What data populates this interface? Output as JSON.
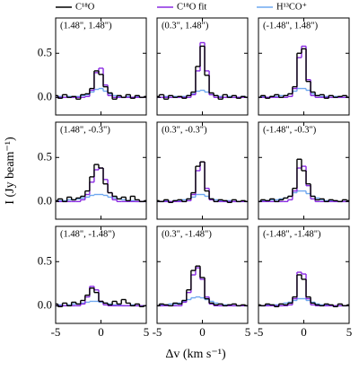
{
  "figure": {
    "xlabel": "Δv (km s⁻¹)",
    "ylabel": "I (Jy beam⁻¹)"
  },
  "chart_data": [
    {
      "type": "line",
      "drawstyle": "steps-mid",
      "title": "(1.48\", 1.48\")",
      "x": [
        -5,
        -4.5,
        -4,
        -3.5,
        -3,
        -2.5,
        -2,
        -1.5,
        -1,
        -0.5,
        0,
        0.5,
        1,
        1.5,
        2,
        2.5,
        3,
        3.5,
        4,
        4.5,
        5
      ],
      "xlim": [
        -5,
        5
      ],
      "xticks": [
        -5,
        0,
        5
      ],
      "ylim": [
        -0.2,
        0.9
      ],
      "yticks": [
        {
          "value": 0,
          "label": "0.0"
        },
        {
          "value": 0.5,
          "label": "0.5"
        }
      ],
      "series": [
        {
          "name": "C¹⁸O",
          "color": "#000000",
          "values": [
            0.02,
            -0.01,
            0.03,
            0.0,
            0.01,
            -0.02,
            0.03,
            0.04,
            0.1,
            0.3,
            0.26,
            0.12,
            0.05,
            -0.02,
            0.02,
            0.0,
            0.03,
            -0.01,
            0.02,
            0.0,
            0.01
          ]
        },
        {
          "name": "C¹⁸O fit",
          "color": "#8a2be2",
          "values": [
            0,
            0,
            0,
            0,
            0,
            0,
            0,
            0.01,
            0.08,
            0.28,
            0.33,
            0.14,
            0.02,
            0,
            0,
            0,
            0,
            0,
            0,
            0,
            0
          ]
        },
        {
          "name": "H¹³CO⁺",
          "color": "#6fa8f0",
          "values": [
            0,
            0.01,
            0,
            0.01,
            0,
            0.01,
            0.02,
            0.03,
            0.06,
            0.09,
            0.1,
            0.07,
            0.04,
            0.02,
            0.01,
            0,
            0.01,
            0,
            0.01,
            0,
            0
          ]
        }
      ]
    },
    {
      "type": "line",
      "drawstyle": "steps-mid",
      "title": "(0.3\", 1.48\")",
      "x": [
        -5,
        -4.5,
        -4,
        -3.5,
        -3,
        -2.5,
        -2,
        -1.5,
        -1,
        -0.5,
        0,
        0.5,
        1,
        1.5,
        2,
        2.5,
        3,
        3.5,
        4,
        4.5,
        5
      ],
      "xlim": [
        -5,
        5
      ],
      "xticks": [
        -5,
        0,
        5
      ],
      "ylim": [
        -0.2,
        0.9
      ],
      "yticks": [
        {
          "value": 0,
          "label": "0.0"
        },
        {
          "value": 0.5,
          "label": "0.5"
        }
      ],
      "series": [
        {
          "name": "C¹⁸O",
          "color": "#000000",
          "values": [
            0.01,
            0.03,
            -0.02,
            0.02,
            0.0,
            0.01,
            -0.01,
            0.02,
            0.06,
            0.35,
            0.58,
            0.25,
            0.05,
            0.02,
            -0.02,
            0.03,
            0.0,
            0.02,
            -0.01,
            0.01,
            0.0
          ]
        },
        {
          "name": "C¹⁸O fit",
          "color": "#8a2be2",
          "values": [
            0,
            0,
            0,
            0,
            0,
            0,
            0,
            0,
            0.03,
            0.3,
            0.62,
            0.3,
            0.03,
            0,
            0,
            0,
            0,
            0,
            0,
            0,
            0
          ]
        },
        {
          "name": "H¹³CO⁺",
          "color": "#6fa8f0",
          "values": [
            0,
            0,
            0.01,
            0,
            0.01,
            0,
            0.01,
            0.02,
            0.04,
            0.07,
            0.08,
            0.06,
            0.03,
            0.02,
            0.01,
            0,
            0.01,
            0,
            0,
            0.01,
            0
          ]
        }
      ]
    },
    {
      "type": "line",
      "drawstyle": "steps-mid",
      "title": "(-1.48\", 1.48\")",
      "x": [
        -5,
        -4.5,
        -4,
        -3.5,
        -3,
        -2.5,
        -2,
        -1.5,
        -1,
        -0.5,
        0,
        0.5,
        1,
        1.5,
        2,
        2.5,
        3,
        3.5,
        4,
        4.5,
        5
      ],
      "xlim": [
        -5,
        5
      ],
      "xticks": [
        -5,
        0,
        5
      ],
      "ylim": [
        -0.2,
        0.9
      ],
      "yticks": [
        {
          "value": 0,
          "label": "0.0"
        },
        {
          "value": 0.5,
          "label": "0.5"
        }
      ],
      "series": [
        {
          "name": "C¹⁸O",
          "color": "#000000",
          "values": [
            0.0,
            0.02,
            -0.01,
            0.01,
            0.03,
            0.0,
            0.02,
            0.04,
            0.12,
            0.5,
            0.55,
            0.18,
            0.06,
            0.02,
            0.03,
            -0.01,
            0.02,
            0.0,
            0.01,
            0.02,
            0.0
          ]
        },
        {
          "name": "C¹⁸O fit",
          "color": "#8a2be2",
          "values": [
            0,
            0,
            0,
            0,
            0,
            0,
            0,
            0.01,
            0.1,
            0.45,
            0.58,
            0.2,
            0.02,
            0,
            0,
            0,
            0,
            0,
            0,
            0,
            0
          ]
        },
        {
          "name": "H¹³CO⁺",
          "color": "#6fa8f0",
          "values": [
            0,
            0.01,
            0,
            0.01,
            0.01,
            0.02,
            0.02,
            0.04,
            0.07,
            0.1,
            0.1,
            0.08,
            0.04,
            0.02,
            0.01,
            0.01,
            0,
            0.01,
            0,
            0,
            0
          ]
        }
      ]
    },
    {
      "type": "line",
      "drawstyle": "steps-mid",
      "title": "(1.48\", -0.3\")",
      "x": [
        -5,
        -4.5,
        -4,
        -3.5,
        -3,
        -2.5,
        -2,
        -1.5,
        -1,
        -0.5,
        0,
        0.5,
        1,
        1.5,
        2,
        2.5,
        3,
        3.5,
        4,
        4.5,
        5
      ],
      "xlim": [
        -5,
        5
      ],
      "xticks": [
        -5,
        0,
        5
      ],
      "ylim": [
        -0.2,
        0.9
      ],
      "yticks": [
        {
          "value": 0,
          "label": "0.0"
        },
        {
          "value": 0.5,
          "label": "0.5"
        }
      ],
      "series": [
        {
          "name": "C¹⁸O",
          "color": "#000000",
          "values": [
            0.01,
            0.03,
            0.0,
            0.05,
            0.02,
            0.04,
            0.06,
            0.12,
            0.28,
            0.42,
            0.38,
            0.2,
            0.1,
            0.06,
            0.03,
            0.05,
            0.01,
            0.06,
            0.02,
            0.0,
            0.01
          ]
        },
        {
          "name": "C¹⁸O fit",
          "color": "#8a2be2",
          "values": [
            0,
            0,
            0,
            0,
            0,
            0,
            0.02,
            0.08,
            0.22,
            0.36,
            0.38,
            0.25,
            0.1,
            0.02,
            0,
            0,
            0,
            0,
            0,
            0,
            0
          ]
        },
        {
          "name": "H¹³CO⁺",
          "color": "#6fa8f0",
          "values": [
            0,
            0.01,
            0.01,
            0.02,
            0.02,
            0.03,
            0.04,
            0.05,
            0.07,
            0.08,
            0.08,
            0.07,
            0.05,
            0.04,
            0.03,
            0.02,
            0.01,
            0.01,
            0,
            0,
            0
          ]
        }
      ]
    },
    {
      "type": "line",
      "drawstyle": "steps-mid",
      "title": "(0.3\", -0.3\")",
      "x": [
        -5,
        -4.5,
        -4,
        -3.5,
        -3,
        -2.5,
        -2,
        -1.5,
        -1,
        -0.5,
        0,
        0.5,
        1,
        1.5,
        2,
        2.5,
        3,
        3.5,
        4,
        4.5,
        5
      ],
      "xlim": [
        -5,
        5
      ],
      "xticks": [
        -5,
        0,
        5
      ],
      "ylim": [
        -0.2,
        0.9
      ],
      "yticks": [
        {
          "value": 0,
          "label": "0.0"
        },
        {
          "value": 0.5,
          "label": "0.5"
        }
      ],
      "series": [
        {
          "name": "C¹⁸O",
          "color": "#000000",
          "values": [
            0.01,
            0.0,
            0.02,
            -0.01,
            0.01,
            0.02,
            0.0,
            0.03,
            0.1,
            0.4,
            0.45,
            0.12,
            0.03,
            0.0,
            0.02,
            0.01,
            -0.01,
            0.02,
            0.0,
            0.01,
            0.0
          ]
        },
        {
          "name": "C¹⁸O fit",
          "color": "#8a2be2",
          "values": [
            0,
            0,
            0,
            0,
            0,
            0,
            0,
            0.01,
            0.08,
            0.35,
            0.45,
            0.15,
            0.02,
            0,
            0,
            0,
            0,
            0,
            0,
            0,
            0
          ]
        },
        {
          "name": "H¹³CO⁺",
          "color": "#6fa8f0",
          "values": [
            0,
            0,
            0.01,
            0,
            0.01,
            0.01,
            0.02,
            0.03,
            0.05,
            0.08,
            0.08,
            0.06,
            0.03,
            0.02,
            0.01,
            0,
            0.01,
            0,
            0,
            0,
            0
          ]
        }
      ]
    },
    {
      "type": "line",
      "drawstyle": "steps-mid",
      "title": "(-1.48\", -0.3\")",
      "x": [
        -5,
        -4.5,
        -4,
        -3.5,
        -3,
        -2.5,
        -2,
        -1.5,
        -1,
        -0.5,
        0,
        0.5,
        1,
        1.5,
        2,
        2.5,
        3,
        3.5,
        4,
        4.5,
        5
      ],
      "xlim": [
        -5,
        5
      ],
      "xticks": [
        -5,
        0,
        5
      ],
      "ylim": [
        -0.2,
        0.9
      ],
      "yticks": [
        {
          "value": 0,
          "label": "0.0"
        },
        {
          "value": 0.5,
          "label": "0.5"
        }
      ],
      "series": [
        {
          "name": "C¹⁸O",
          "color": "#000000",
          "values": [
            0.0,
            0.02,
            0.01,
            0.03,
            0.0,
            0.02,
            0.04,
            0.06,
            0.15,
            0.48,
            0.35,
            0.2,
            0.06,
            0.02,
            0.03,
            0.0,
            0.02,
            0.01,
            0.0,
            0.02,
            0.01
          ]
        },
        {
          "name": "C¹⁸O fit",
          "color": "#8a2be2",
          "values": [
            0,
            0,
            0,
            0,
            0,
            0,
            0,
            0.02,
            0.12,
            0.38,
            0.4,
            0.18,
            0.03,
            0,
            0,
            0,
            0,
            0,
            0,
            0,
            0
          ]
        },
        {
          "name": "H¹³CO⁺",
          "color": "#6fa8f0",
          "values": [
            0,
            0.01,
            0.01,
            0.02,
            0.02,
            0.03,
            0.04,
            0.06,
            0.1,
            0.12,
            0.12,
            0.09,
            0.06,
            0.04,
            0.02,
            0.01,
            0.01,
            0,
            0,
            0,
            0
          ]
        }
      ]
    },
    {
      "type": "line",
      "drawstyle": "steps-mid",
      "title": "(1.48\", -1.48\")",
      "x": [
        -5,
        -4.5,
        -4,
        -3.5,
        -3,
        -2.5,
        -2,
        -1.5,
        -1,
        -0.5,
        0,
        0.5,
        1,
        1.5,
        2,
        2.5,
        3,
        3.5,
        4,
        4.5,
        5
      ],
      "xlim": [
        -5,
        5
      ],
      "xticks": [
        -5,
        0,
        5
      ],
      "ylim": [
        -0.2,
        0.9
      ],
      "yticks": [
        {
          "value": 0,
          "label": "0.0"
        },
        {
          "value": 0.5,
          "label": "0.5"
        }
      ],
      "series": [
        {
          "name": "C¹⁸O",
          "color": "#000000",
          "values": [
            0.02,
            -0.01,
            0.03,
            0.0,
            0.04,
            0.02,
            0.06,
            0.12,
            0.2,
            0.15,
            0.05,
            0.03,
            0.01,
            0.05,
            0.02,
            0.07,
            0.03,
            0.0,
            0.02,
            -0.01,
            0.0
          ]
        },
        {
          "name": "C¹⁸O fit",
          "color": "#8a2be2",
          "values": [
            0,
            0,
            0,
            0,
            0,
            0,
            0.02,
            0.1,
            0.22,
            0.18,
            0.05,
            0.01,
            0,
            0,
            0,
            0,
            0,
            0,
            0,
            0,
            0
          ]
        },
        {
          "name": "H¹³CO⁺",
          "color": "#6fa8f0",
          "values": [
            0,
            0.01,
            0,
            0.01,
            0.02,
            0.02,
            0.03,
            0.04,
            0.05,
            0.05,
            0.04,
            0.03,
            0.02,
            0.01,
            0.01,
            0,
            0,
            0.01,
            0,
            0,
            0
          ]
        }
      ]
    },
    {
      "type": "line",
      "drawstyle": "steps-mid",
      "title": "(0.3\", -1.48\")",
      "x": [
        -5,
        -4.5,
        -4,
        -3.5,
        -3,
        -2.5,
        -2,
        -1.5,
        -1,
        -0.5,
        0,
        0.5,
        1,
        1.5,
        2,
        2.5,
        3,
        3.5,
        4,
        4.5,
        5
      ],
      "xlim": [
        -5,
        5
      ],
      "xticks": [
        -5,
        0,
        5
      ],
      "ylim": [
        -0.2,
        0.9
      ],
      "yticks": [
        {
          "value": 0,
          "label": "0.0"
        },
        {
          "value": 0.5,
          "label": "0.5"
        }
      ],
      "series": [
        {
          "name": "C¹⁸O",
          "color": "#000000",
          "values": [
            0.0,
            0.02,
            0.01,
            0.0,
            0.03,
            0.02,
            0.06,
            0.18,
            0.4,
            0.45,
            0.32,
            0.08,
            0.03,
            0.01,
            0.02,
            0.0,
            0.01,
            0.02,
            0.0,
            0.01,
            0.0
          ]
        },
        {
          "name": "C¹⁸O fit",
          "color": "#8a2be2",
          "values": [
            0,
            0,
            0,
            0,
            0,
            0,
            0.04,
            0.15,
            0.35,
            0.43,
            0.3,
            0.1,
            0.02,
            0,
            0,
            0,
            0,
            0,
            0,
            0,
            0
          ]
        },
        {
          "name": "H¹³CO⁺",
          "color": "#6fa8f0",
          "values": [
            0,
            0.01,
            0.01,
            0.02,
            0.02,
            0.03,
            0.05,
            0.07,
            0.09,
            0.1,
            0.09,
            0.07,
            0.05,
            0.03,
            0.02,
            0.01,
            0.01,
            0,
            0,
            0,
            0
          ]
        }
      ]
    },
    {
      "type": "line",
      "drawstyle": "steps-mid",
      "title": "(-1.48\", -1.48\")",
      "x": [
        -5,
        -4.5,
        -4,
        -3.5,
        -3,
        -2.5,
        -2,
        -1.5,
        -1,
        -0.5,
        0,
        0.5,
        1,
        1.5,
        2,
        2.5,
        3,
        3.5,
        4,
        4.5,
        5
      ],
      "xlim": [
        -5,
        5
      ],
      "xticks": [
        -5,
        0,
        5
      ],
      "ylim": [
        -0.2,
        0.9
      ],
      "yticks": [
        {
          "value": 0,
          "label": "0.0"
        },
        {
          "value": 0.5,
          "label": "0.5"
        }
      ],
      "series": [
        {
          "name": "C¹⁸O",
          "color": "#000000",
          "values": [
            0.01,
            0.0,
            0.02,
            0.01,
            -0.01,
            0.02,
            0.01,
            0.03,
            0.1,
            0.35,
            0.3,
            0.1,
            0.03,
            0.01,
            0.0,
            0.02,
            0.01,
            -0.01,
            0.02,
            0.0,
            0.01
          ]
        },
        {
          "name": "C¹⁸O fit",
          "color": "#8a2be2",
          "values": [
            0,
            0,
            0,
            0,
            0,
            0,
            0,
            0.01,
            0.08,
            0.38,
            0.36,
            0.08,
            0.01,
            0,
            0,
            0,
            0,
            0,
            0,
            0,
            0
          ]
        },
        {
          "name": "H¹³CO⁺",
          "color": "#6fa8f0",
          "values": [
            0,
            0,
            0.01,
            0.01,
            0.01,
            0.02,
            0.03,
            0.04,
            0.06,
            0.08,
            0.08,
            0.06,
            0.04,
            0.02,
            0.01,
            0.01,
            0,
            0,
            0,
            0,
            0
          ]
        }
      ]
    }
  ]
}
